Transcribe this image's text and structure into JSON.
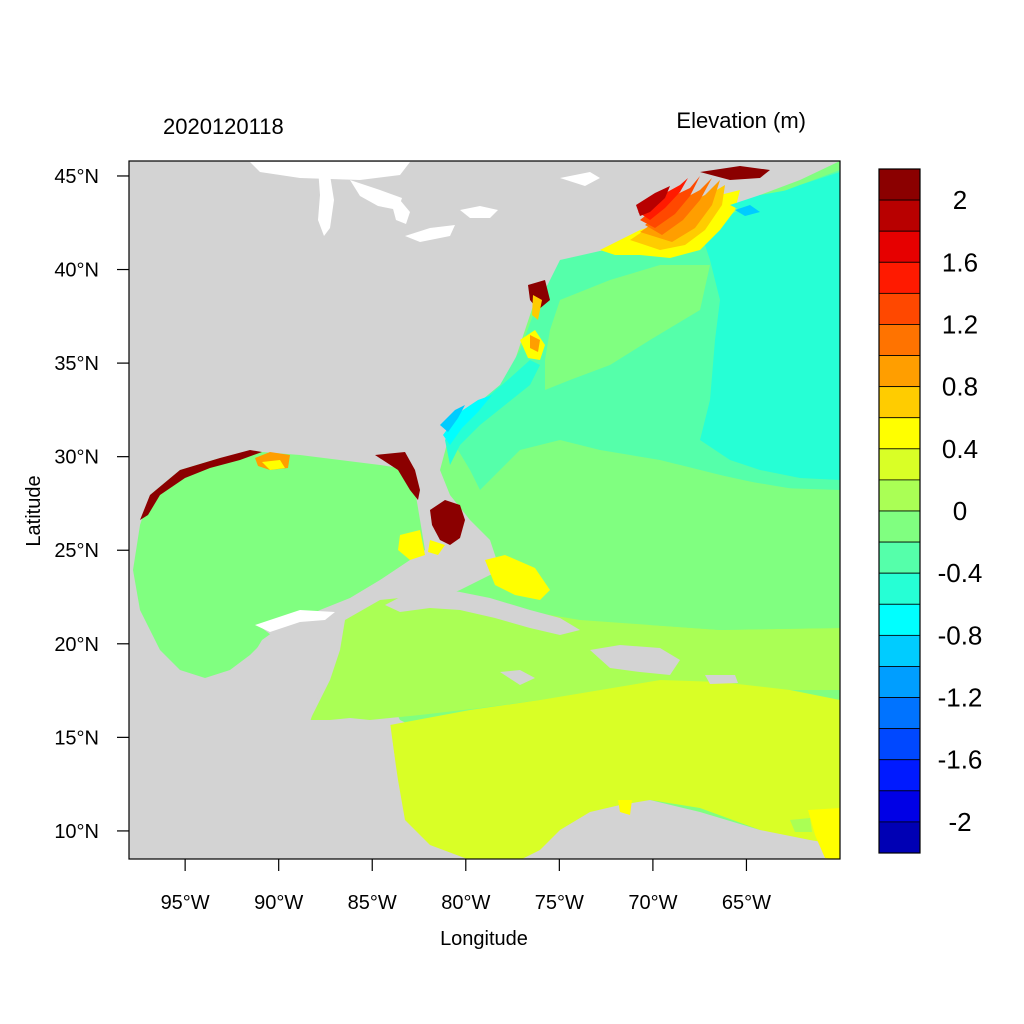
{
  "header": {
    "timestamp": "2020120118",
    "field_label": "Elevation (m)"
  },
  "axes": {
    "xlabel": "Longitude",
    "ylabel": "Latitude",
    "lat_ticks": [
      {
        "value": 45,
        "label": "45°N"
      },
      {
        "value": 40,
        "label": "40°N"
      },
      {
        "value": 35,
        "label": "35°N"
      },
      {
        "value": 30,
        "label": "30°N"
      },
      {
        "value": 25,
        "label": "25°N"
      },
      {
        "value": 20,
        "label": "20°N"
      },
      {
        "value": 15,
        "label": "15°N"
      },
      {
        "value": 10,
        "label": "10°N"
      }
    ],
    "lon_ticks": [
      {
        "value": -95,
        "label": "95°W"
      },
      {
        "value": -90,
        "label": "90°W"
      },
      {
        "value": -85,
        "label": "85°W"
      },
      {
        "value": -80,
        "label": "80°W"
      },
      {
        "value": -75,
        "label": "75°W"
      },
      {
        "value": -70,
        "label": "70°W"
      },
      {
        "value": -65,
        "label": "65°W"
      }
    ],
    "lon_range": [
      -98,
      -60
    ],
    "lat_range": [
      8.5,
      45.8
    ]
  },
  "colorbar": {
    "labels": [
      "2",
      "1.6",
      "1.2",
      "0.8",
      "0.4",
      "0",
      "-0.4",
      "-0.8",
      "-1.2",
      "-1.6",
      "-2"
    ],
    "colors_top_to_bottom": [
      "#8b0000",
      "#b80000",
      "#e60000",
      "#ff1a00",
      "#ff4800",
      "#ff7300",
      "#ff9e00",
      "#ffcc00",
      "#ffff00",
      "#d9ff26",
      "#aaff55",
      "#80ff80",
      "#55ffaa",
      "#26ffd5",
      "#00ffff",
      "#00ccff",
      "#009eff",
      "#0073ff",
      "#0048ff",
      "#001aff",
      "#0000e6",
      "#0000b4"
    ]
  },
  "map": {
    "land_color": "#d3d3d3",
    "water_color": "#ffffff"
  }
}
